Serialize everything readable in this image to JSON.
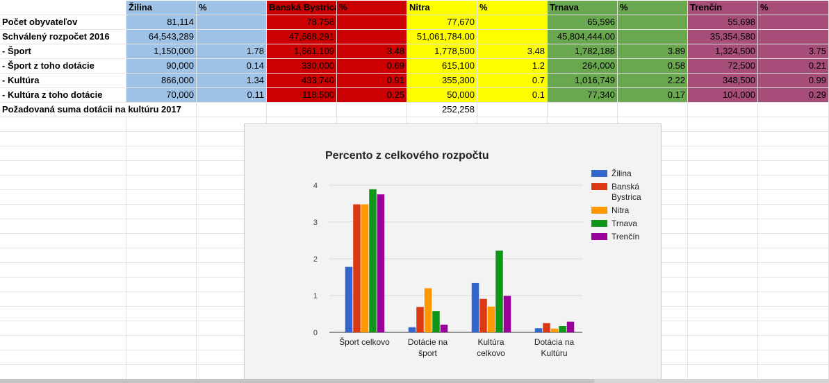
{
  "sheet": {
    "colors": {
      "zilina": "#9fc2e7",
      "banska_bystrica": "#cc0000",
      "nitra": "#ffff00",
      "trnava": "#6aa84f",
      "trencin": "#a64d79"
    },
    "header": [
      "",
      "Žilina",
      "%",
      "Banská Bystrica",
      "%",
      "Nitra",
      "%",
      "Trnava",
      "%",
      "Trenčín",
      "%"
    ],
    "rows": [
      [
        "Počet obyvateľov",
        "81,114",
        "",
        "78,758",
        "",
        "77,670",
        "",
        "65,596",
        "",
        "55,698",
        ""
      ],
      [
        "Schválený rozpočet 2016",
        "64,543,289",
        "",
        "47,668,291",
        "",
        "51,061,784.00",
        "",
        "45,804,444.00",
        "",
        "35,354,580",
        ""
      ],
      [
        " - Šport",
        "1,150,000",
        "1.78",
        "1,661,109",
        "3.48",
        "1,778,500",
        "3.48",
        "1,782,188",
        "3.89",
        "1,324,500",
        "3.75"
      ],
      [
        " - Šport z toho dotácie",
        "90,000",
        "0.14",
        "330,000",
        "0.69",
        "615,100",
        "1.2",
        "264,000",
        "0.58",
        "72,500",
        "0.21"
      ],
      [
        " - Kultúra",
        "866,000",
        "1.34",
        "433,740",
        "0.91",
        "355,300",
        "0.7",
        "1,016,749",
        "2.22",
        "348,500",
        "0.99"
      ],
      [
        " - Kultúra z toho dotácie",
        "70,000",
        "0.11",
        "118,500",
        "0.25",
        "50,000",
        "0.1",
        "77,340",
        "0.17",
        "104,000",
        "0.29"
      ],
      [
        "Požadovaná suma dotácii na kultúru 2017",
        "",
        "",
        "",
        "",
        "252,258",
        "",
        "",
        "",
        "",
        ""
      ]
    ]
  },
  "chart_data": {
    "type": "bar",
    "title": "Percento z celkového rozpočtu",
    "categories": [
      "Šport celkovo",
      "Dotácie na šport",
      "Kultúra celkovo",
      "Dotácia na Kultúru"
    ],
    "series": [
      {
        "name": "Žilina",
        "color": "#3366cc",
        "values": [
          1.78,
          0.14,
          1.34,
          0.11
        ]
      },
      {
        "name": "Banská Bystrica",
        "color": "#dc3912",
        "values": [
          3.48,
          0.69,
          0.91,
          0.25
        ]
      },
      {
        "name": "Nitra",
        "color": "#ff9900",
        "values": [
          3.48,
          1.2,
          0.7,
          0.1
        ]
      },
      {
        "name": "Trnava",
        "color": "#109618",
        "values": [
          3.89,
          0.58,
          2.22,
          0.17
        ]
      },
      {
        "name": "Trenčín",
        "color": "#990099",
        "values": [
          3.75,
          0.21,
          0.99,
          0.29
        ]
      }
    ],
    "yticks": [
      0,
      1,
      2,
      3,
      4
    ],
    "ylim": [
      0,
      4.3
    ],
    "grid": true,
    "legend": "right"
  }
}
